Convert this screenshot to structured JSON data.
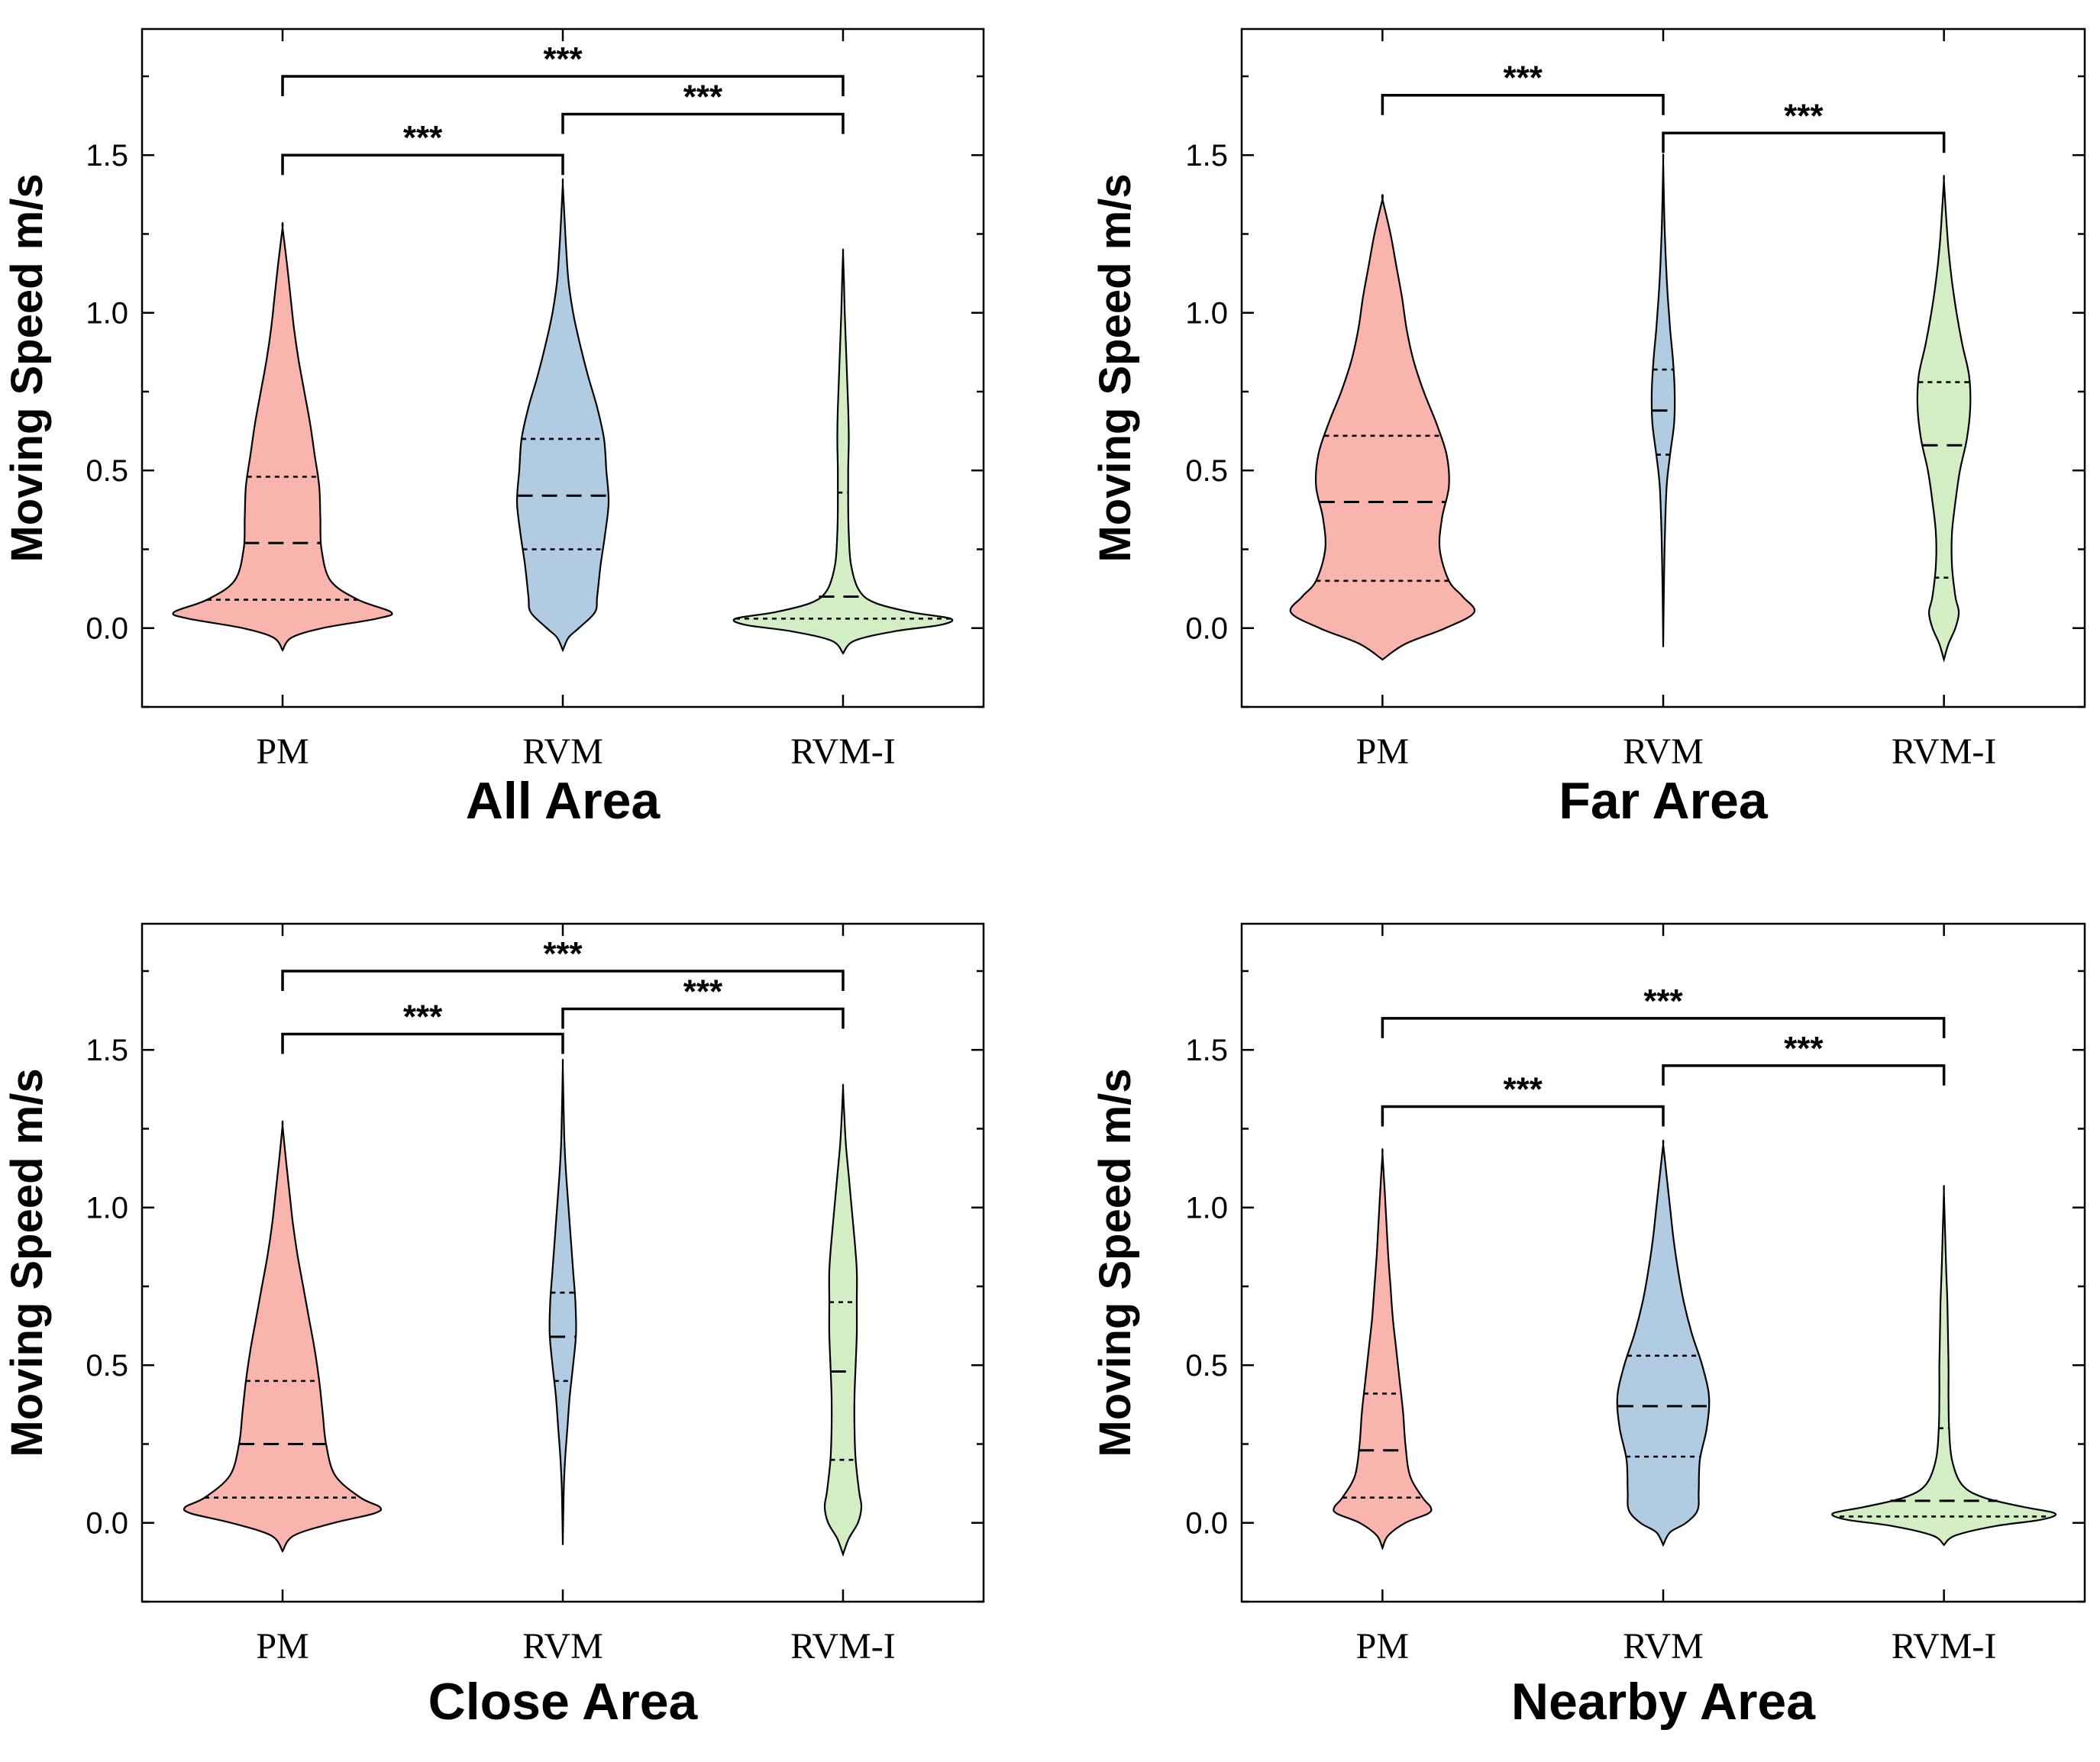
{
  "chart_data": [
    {
      "type": "violin",
      "title": "All Area",
      "ylabel": "Moving Speed m/s",
      "ylim": [
        -0.25,
        1.9
      ],
      "yticks": [
        "0.0",
        "0.5",
        "1.0",
        "1.5"
      ],
      "categories": [
        "PM",
        "RVM",
        "RVM-I"
      ],
      "series": [
        {
          "name": "PM",
          "color": "#F9B4AE",
          "min": -0.07,
          "max": 1.27,
          "q1": 0.09,
          "median": 0.27,
          "q3": 0.48,
          "profile": [
            [
              -0.07,
              0
            ],
            [
              -0.03,
              0.08
            ],
            [
              0.0,
              0.35
            ],
            [
              0.03,
              0.82
            ],
            [
              0.05,
              0.95
            ],
            [
              0.09,
              0.66
            ],
            [
              0.15,
              0.42
            ],
            [
              0.25,
              0.34
            ],
            [
              0.35,
              0.33
            ],
            [
              0.45,
              0.32
            ],
            [
              0.55,
              0.28
            ],
            [
              0.65,
              0.24
            ],
            [
              0.75,
              0.19
            ],
            [
              0.85,
              0.14
            ],
            [
              0.95,
              0.1
            ],
            [
              1.05,
              0.07
            ],
            [
              1.15,
              0.04
            ],
            [
              1.27,
              0
            ]
          ]
        },
        {
          "name": "RVM",
          "color": "#B1CBE2",
          "min": -0.07,
          "max": 1.41,
          "q1": 0.25,
          "median": 0.42,
          "q3": 0.6,
          "profile": [
            [
              -0.07,
              0
            ],
            [
              -0.03,
              0.05
            ],
            [
              0.0,
              0.14
            ],
            [
              0.05,
              0.28
            ],
            [
              0.1,
              0.3
            ],
            [
              0.2,
              0.33
            ],
            [
              0.3,
              0.37
            ],
            [
              0.4,
              0.4
            ],
            [
              0.5,
              0.38
            ],
            [
              0.6,
              0.36
            ],
            [
              0.7,
              0.3
            ],
            [
              0.8,
              0.22
            ],
            [
              0.9,
              0.15
            ],
            [
              1.0,
              0.09
            ],
            [
              1.1,
              0.05
            ],
            [
              1.2,
              0.03
            ],
            [
              1.3,
              0.015
            ],
            [
              1.41,
              0
            ]
          ]
        },
        {
          "name": "RVM-I",
          "color": "#D3EEC5",
          "min": -0.08,
          "max": 1.19,
          "q1": 0.03,
          "median": 0.1,
          "q3": 0.43,
          "profile": [
            [
              -0.08,
              0
            ],
            [
              -0.04,
              0.1
            ],
            [
              -0.01,
              0.45
            ],
            [
              0.01,
              0.85
            ],
            [
              0.03,
              0.94
            ],
            [
              0.05,
              0.6
            ],
            [
              0.08,
              0.28
            ],
            [
              0.12,
              0.14
            ],
            [
              0.2,
              0.07
            ],
            [
              0.3,
              0.05
            ],
            [
              0.4,
              0.045
            ],
            [
              0.5,
              0.045
            ],
            [
              0.6,
              0.05
            ],
            [
              0.7,
              0.045
            ],
            [
              0.8,
              0.035
            ],
            [
              0.9,
              0.025
            ],
            [
              1.0,
              0.015
            ],
            [
              1.1,
              0.008
            ],
            [
              1.19,
              0
            ]
          ]
        }
      ],
      "significance": [
        {
          "pair": [
            "PM",
            "RVM-I"
          ],
          "label": "***",
          "y": 1.75
        },
        {
          "pair": [
            "RVM",
            "RVM-I"
          ],
          "label": "***",
          "y": 1.63
        },
        {
          "pair": [
            "PM",
            "RVM"
          ],
          "label": "***",
          "y": 1.5
        }
      ]
    },
    {
      "type": "violin",
      "title": "Far Area",
      "ylabel": "Moving Speed m/s",
      "ylim": [
        -0.25,
        1.9
      ],
      "yticks": [
        "0.0",
        "0.5",
        "1.0",
        "1.5"
      ],
      "categories": [
        "PM",
        "RVM",
        "RVM-I"
      ],
      "series": [
        {
          "name": "PM",
          "color": "#F9B4AE",
          "min": -0.1,
          "max": 1.36,
          "q1": 0.15,
          "median": 0.4,
          "q3": 0.61,
          "profile": [
            [
              -0.1,
              0
            ],
            [
              -0.05,
              0.2
            ],
            [
              0.0,
              0.55
            ],
            [
              0.05,
              0.8
            ],
            [
              0.1,
              0.7
            ],
            [
              0.15,
              0.58
            ],
            [
              0.25,
              0.5
            ],
            [
              0.35,
              0.52
            ],
            [
              0.45,
              0.58
            ],
            [
              0.55,
              0.56
            ],
            [
              0.65,
              0.47
            ],
            [
              0.75,
              0.36
            ],
            [
              0.85,
              0.27
            ],
            [
              0.95,
              0.21
            ],
            [
              1.05,
              0.17
            ],
            [
              1.15,
              0.12
            ],
            [
              1.25,
              0.07
            ],
            [
              1.36,
              0
            ]
          ]
        },
        {
          "name": "RVM",
          "color": "#B1CBE2",
          "min": -0.06,
          "max": 1.48,
          "q1": 0.55,
          "median": 0.69,
          "q3": 0.82,
          "profile": [
            [
              -0.06,
              0
            ],
            [
              0.1,
              0.005
            ],
            [
              0.3,
              0.015
            ],
            [
              0.45,
              0.03
            ],
            [
              0.55,
              0.06
            ],
            [
              0.65,
              0.095
            ],
            [
              0.75,
              0.1
            ],
            [
              0.85,
              0.085
            ],
            [
              0.95,
              0.06
            ],
            [
              1.05,
              0.04
            ],
            [
              1.15,
              0.025
            ],
            [
              1.3,
              0.01
            ],
            [
              1.48,
              0
            ]
          ]
        },
        {
          "name": "RVM-I",
          "color": "#D3EEC5",
          "min": -0.1,
          "max": 1.42,
          "q1": 0.16,
          "median": 0.58,
          "q3": 0.78,
          "profile": [
            [
              -0.1,
              0
            ],
            [
              -0.05,
              0.04
            ],
            [
              0.0,
              0.1
            ],
            [
              0.05,
              0.13
            ],
            [
              0.1,
              0.1
            ],
            [
              0.2,
              0.07
            ],
            [
              0.3,
              0.07
            ],
            [
              0.4,
              0.1
            ],
            [
              0.5,
              0.14
            ],
            [
              0.6,
              0.2
            ],
            [
              0.7,
              0.23
            ],
            [
              0.8,
              0.22
            ],
            [
              0.9,
              0.16
            ],
            [
              1.0,
              0.11
            ],
            [
              1.1,
              0.07
            ],
            [
              1.2,
              0.04
            ],
            [
              1.3,
              0.02
            ],
            [
              1.42,
              0
            ]
          ]
        }
      ],
      "significance": [
        {
          "pair": [
            "PM",
            "RVM"
          ],
          "label": "***",
          "y": 1.69
        },
        {
          "pair": [
            "RVM",
            "RVM-I"
          ],
          "label": "***",
          "y": 1.57
        }
      ]
    },
    {
      "type": "violin",
      "title": "Close Area",
      "ylabel": "Moving Speed m/s",
      "ylim": [
        -0.25,
        1.9
      ],
      "yticks": [
        "0.0",
        "0.5",
        "1.0",
        "1.5"
      ],
      "categories": [
        "PM",
        "RVM",
        "RVM-I"
      ],
      "series": [
        {
          "name": "PM",
          "color": "#F9B4AE",
          "min": -0.09,
          "max": 1.26,
          "q1": 0.08,
          "median": 0.25,
          "q3": 0.45,
          "profile": [
            [
              -0.09,
              0
            ],
            [
              -0.04,
              0.1
            ],
            [
              0.0,
              0.45
            ],
            [
              0.03,
              0.8
            ],
            [
              0.05,
              0.85
            ],
            [
              0.08,
              0.68
            ],
            [
              0.15,
              0.46
            ],
            [
              0.25,
              0.38
            ],
            [
              0.35,
              0.35
            ],
            [
              0.45,
              0.32
            ],
            [
              0.55,
              0.28
            ],
            [
              0.65,
              0.23
            ],
            [
              0.75,
              0.18
            ],
            [
              0.85,
              0.13
            ],
            [
              0.95,
              0.09
            ],
            [
              1.05,
              0.06
            ],
            [
              1.15,
              0.03
            ],
            [
              1.26,
              0
            ]
          ]
        },
        {
          "name": "RVM",
          "color": "#B1CBE2",
          "min": -0.07,
          "max": 1.45,
          "q1": 0.45,
          "median": 0.59,
          "q3": 0.73,
          "profile": [
            [
              -0.07,
              0
            ],
            [
              0.1,
              0.008
            ],
            [
              0.2,
              0.02
            ],
            [
              0.3,
              0.04
            ],
            [
              0.4,
              0.06
            ],
            [
              0.5,
              0.09
            ],
            [
              0.6,
              0.115
            ],
            [
              0.7,
              0.11
            ],
            [
              0.8,
              0.09
            ],
            [
              0.9,
              0.07
            ],
            [
              1.0,
              0.05
            ],
            [
              1.1,
              0.03
            ],
            [
              1.2,
              0.015
            ],
            [
              1.3,
              0.008
            ],
            [
              1.45,
              0
            ]
          ]
        },
        {
          "name": "RVM-I",
          "color": "#D3EEC5",
          "min": -0.1,
          "max": 1.38,
          "q1": 0.2,
          "median": 0.48,
          "q3": 0.7,
          "profile": [
            [
              -0.1,
              0
            ],
            [
              -0.05,
              0.05
            ],
            [
              0.0,
              0.13
            ],
            [
              0.05,
              0.16
            ],
            [
              0.1,
              0.14
            ],
            [
              0.2,
              0.11
            ],
            [
              0.3,
              0.1
            ],
            [
              0.4,
              0.1
            ],
            [
              0.5,
              0.11
            ],
            [
              0.6,
              0.12
            ],
            [
              0.7,
              0.12
            ],
            [
              0.8,
              0.12
            ],
            [
              0.9,
              0.1
            ],
            [
              1.0,
              0.075
            ],
            [
              1.1,
              0.05
            ],
            [
              1.2,
              0.025
            ],
            [
              1.3,
              0.01
            ],
            [
              1.38,
              0
            ]
          ]
        }
      ],
      "significance": [
        {
          "pair": [
            "PM",
            "RVM-I"
          ],
          "label": "***",
          "y": 1.75
        },
        {
          "pair": [
            "RVM",
            "RVM-I"
          ],
          "label": "***",
          "y": 1.63
        },
        {
          "pair": [
            "PM",
            "RVM"
          ],
          "label": "***",
          "y": 1.55
        }
      ]
    },
    {
      "type": "violin",
      "title": "Nearby Area",
      "ylabel": "Moving Speed m/s",
      "ylim": [
        -0.25,
        1.9
      ],
      "yticks": [
        "0.0",
        "0.5",
        "1.0",
        "1.5"
      ],
      "categories": [
        "PM",
        "RVM",
        "RVM-I"
      ],
      "series": [
        {
          "name": "PM",
          "color": "#F9B4AE",
          "min": -0.08,
          "max": 1.17,
          "q1": 0.08,
          "median": 0.23,
          "q3": 0.41,
          "profile": [
            [
              -0.08,
              0
            ],
            [
              -0.04,
              0.05
            ],
            [
              0.0,
              0.2
            ],
            [
              0.03,
              0.4
            ],
            [
              0.05,
              0.42
            ],
            [
              0.08,
              0.35
            ],
            [
              0.15,
              0.24
            ],
            [
              0.25,
              0.2
            ],
            [
              0.35,
              0.18
            ],
            [
              0.45,
              0.15
            ],
            [
              0.55,
              0.12
            ],
            [
              0.65,
              0.09
            ],
            [
              0.75,
              0.07
            ],
            [
              0.85,
              0.05
            ],
            [
              0.95,
              0.035
            ],
            [
              1.05,
              0.02
            ],
            [
              1.17,
              0
            ]
          ]
        },
        {
          "name": "RVM",
          "color": "#B1CBE2",
          "min": -0.07,
          "max": 1.2,
          "q1": 0.21,
          "median": 0.37,
          "q3": 0.53,
          "profile": [
            [
              -0.07,
              0
            ],
            [
              -0.03,
              0.06
            ],
            [
              0.0,
              0.2
            ],
            [
              0.04,
              0.3
            ],
            [
              0.1,
              0.31
            ],
            [
              0.2,
              0.32
            ],
            [
              0.3,
              0.38
            ],
            [
              0.4,
              0.4
            ],
            [
              0.5,
              0.34
            ],
            [
              0.6,
              0.25
            ],
            [
              0.7,
              0.18
            ],
            [
              0.8,
              0.13
            ],
            [
              0.9,
              0.09
            ],
            [
              1.0,
              0.06
            ],
            [
              1.1,
              0.03
            ],
            [
              1.2,
              0
            ]
          ]
        },
        {
          "name": "RVM-I",
          "color": "#D3EEC5",
          "min": -0.07,
          "max": 1.05,
          "q1": 0.02,
          "median": 0.07,
          "q3": 0.3,
          "profile": [
            [
              -0.07,
              0
            ],
            [
              -0.04,
              0.1
            ],
            [
              -0.01,
              0.45
            ],
            [
              0.01,
              0.85
            ],
            [
              0.03,
              0.97
            ],
            [
              0.05,
              0.7
            ],
            [
              0.08,
              0.35
            ],
            [
              0.12,
              0.16
            ],
            [
              0.2,
              0.07
            ],
            [
              0.3,
              0.045
            ],
            [
              0.4,
              0.04
            ],
            [
              0.5,
              0.04
            ],
            [
              0.6,
              0.035
            ],
            [
              0.7,
              0.03
            ],
            [
              0.8,
              0.02
            ],
            [
              0.9,
              0.012
            ],
            [
              1.05,
              0
            ]
          ]
        }
      ],
      "significance": [
        {
          "pair": [
            "PM",
            "RVM-I"
          ],
          "label": "***",
          "y": 1.6
        },
        {
          "pair": [
            "RVM",
            "RVM-I"
          ],
          "label": "***",
          "y": 1.45
        },
        {
          "pair": [
            "PM",
            "RVM"
          ],
          "label": "***",
          "y": 1.32
        }
      ]
    }
  ]
}
